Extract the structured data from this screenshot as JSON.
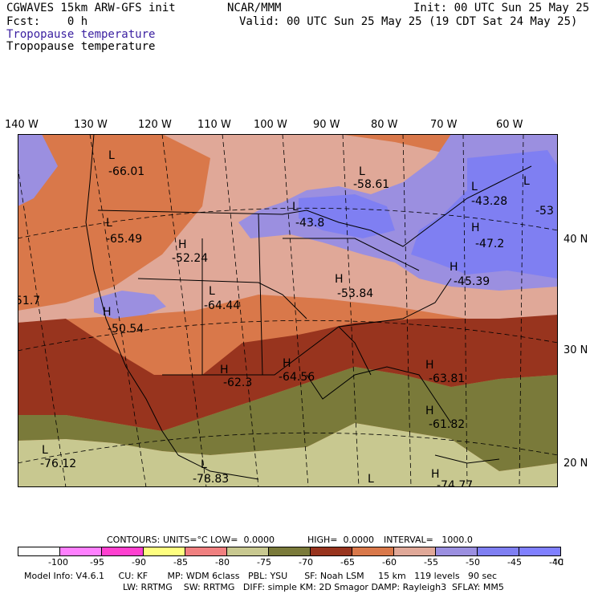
{
  "header": {
    "model_title": "CGWAVES 15km ARW-GFS init",
    "org": "NCAR/MMM",
    "init": "Init: 00 UTC Sun 25 May 25",
    "fcst": "Fcst:    0 h",
    "valid": "Valid: 00 UTC Sun 25 May 25 (19 CDT Sat 24 May 25)",
    "field_title_1": "Tropopause temperature",
    "field_title_2": "Tropopause temperature"
  },
  "longitude_labels": [
    "140 W",
    "130 W",
    "120 W",
    "110 W",
    "100 W",
    "90 W",
    "80 W",
    "70 W",
    "60 W"
  ],
  "latitude_labels": [
    "40 N",
    "30 N",
    "20 N"
  ],
  "extrema": [
    {
      "type": "L",
      "value": "-66.01"
    },
    {
      "type": "L",
      "value": "-58.61"
    },
    {
      "type": "L",
      "value": "-43.28"
    },
    {
      "type": "L",
      "value": "-53"
    },
    {
      "type": "H",
      "value": "-47.2"
    },
    {
      "type": "H",
      "value": "-45.39"
    },
    {
      "type": "L",
      "value": "-43.8"
    },
    {
      "type": "L",
      "value": "-65.49"
    },
    {
      "type": "H",
      "value": "-52.24"
    },
    {
      "type": "L",
      "value": "-64.44"
    },
    {
      "type": "H",
      "value": "-53.84"
    },
    {
      "type": "",
      "value": "51.7"
    },
    {
      "type": "H",
      "value": "-50.54"
    },
    {
      "type": "H",
      "value": "-62.3"
    },
    {
      "type": "H",
      "value": "-64.56"
    },
    {
      "type": "H",
      "value": "-63.81"
    },
    {
      "type": "H",
      "value": "-61.82"
    },
    {
      "type": "L",
      "value": "-76.12"
    },
    {
      "type": "L",
      "value": "-78.83"
    },
    {
      "type": "L",
      "value": ""
    },
    {
      "type": "H",
      "value": "-74.77"
    }
  ],
  "contours_line": {
    "contours_label": "CONTOURS:",
    "units": "UNITS=°C",
    "low": "LOW=  0.0000",
    "high": "HIGH=  0.0000",
    "interval": "INTERVAL=   1000.0"
  },
  "colorbar": {
    "labels": [
      "-100",
      "-95",
      "-90",
      "-85",
      "-80",
      "-75",
      "-70",
      "-65",
      "-60",
      "-55",
      "-50",
      "-45",
      "-40"
    ],
    "unit": "°C",
    "colors": [
      "#ffffff",
      "#ff80ff",
      "#ff40d0",
      "#ffff80",
      "#f08080",
      "#c8c890",
      "#7a7a3a",
      "#98341e",
      "#d9784a",
      "#e0a898",
      "#9b8fe0",
      "#7f7ff2",
      "#8080ff"
    ]
  },
  "model_info": {
    "line1": "Model Info: V4.6.1     CU: KF       MP: WDM 6class   PBL: YSU      SF: Noah LSM     15 km   119 levels   90 sec",
    "line2": "LW: RRTMG    SW: RRTMG   DIFF: simple KM: 2D Smagor DAMP: Rayleigh3  SFLAY: MM5"
  }
}
